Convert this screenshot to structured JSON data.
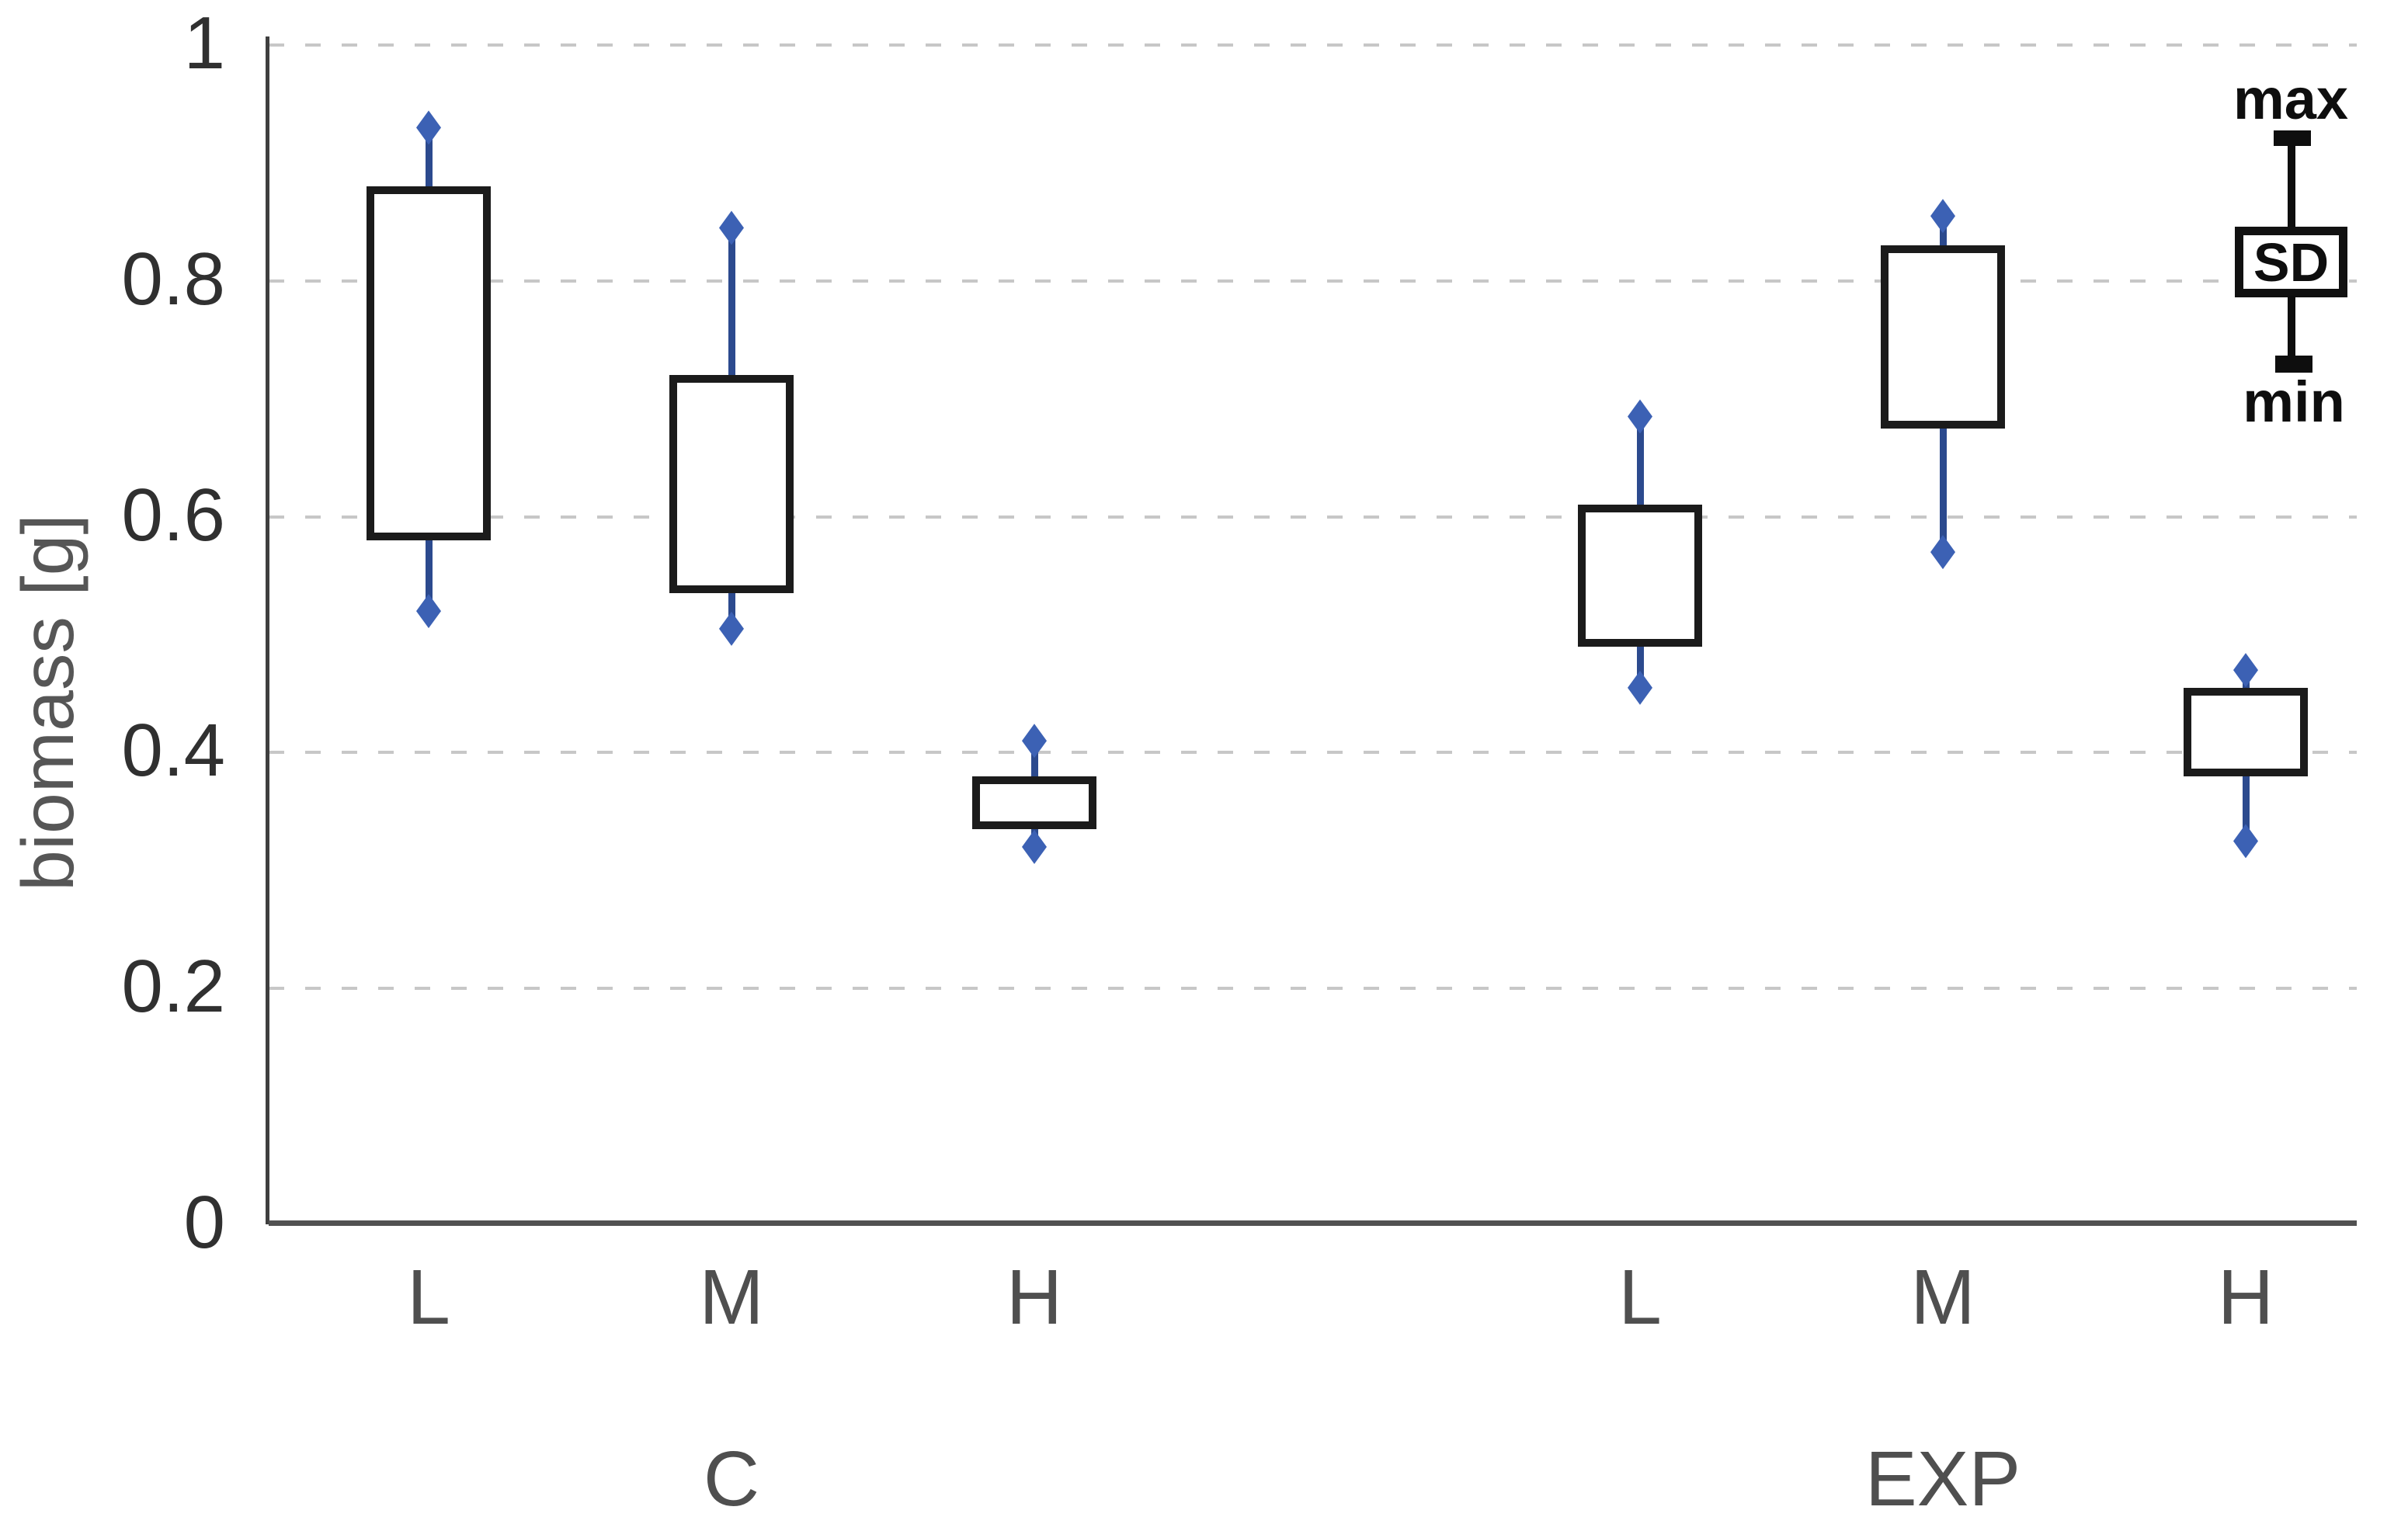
{
  "chart_data": {
    "type": "box",
    "title": "",
    "ylabel": "biomass [g]",
    "xlabel": "",
    "ylim": [
      0,
      1
    ],
    "grid": "dashed horizontal",
    "legend": {
      "position": "top-right",
      "max_label": "max",
      "sd_label": "SD",
      "min_label": "min"
    },
    "yticks": [
      {
        "value": 0,
        "label": "0"
      },
      {
        "value": 0.2,
        "label": "0.2"
      },
      {
        "value": 0.4,
        "label": "0.4"
      },
      {
        "value": 0.6,
        "label": "0.6"
      },
      {
        "value": 0.8,
        "label": "0.8"
      },
      {
        "value": 1,
        "label": "1"
      }
    ],
    "groups": [
      {
        "label": "C",
        "items": [
          {
            "category": "L",
            "sd_low": 0.58,
            "sd_high": 0.88,
            "min": 0.52,
            "max": 0.93
          },
          {
            "category": "M",
            "sd_low": 0.535,
            "sd_high": 0.72,
            "min": 0.505,
            "max": 0.845
          },
          {
            "category": "H",
            "sd_low": 0.335,
            "sd_high": 0.38,
            "min": 0.32,
            "max": 0.41
          }
        ]
      },
      {
        "label": "EXP",
        "items": [
          {
            "category": "L",
            "sd_low": 0.49,
            "sd_high": 0.61,
            "min": 0.455,
            "max": 0.685
          },
          {
            "category": "M",
            "sd_low": 0.675,
            "sd_high": 0.83,
            "min": 0.57,
            "max": 0.855
          },
          {
            "category": "H",
            "sd_low": 0.38,
            "sd_high": 0.455,
            "min": 0.325,
            "max": 0.47
          }
        ]
      }
    ]
  },
  "colors": {
    "box_border": "#1b1b1b",
    "box_fill": "#ffffff",
    "whisker": "#2c4a8e",
    "marker": "#3c61b4",
    "grid": "#c7c7c7",
    "y_axis": "#3f3f3f",
    "x_axis": "#515151",
    "tick_text": "#303030",
    "category_text": "#4f4f4f",
    "axis_title_text": "#565656",
    "legend_text": "#0e0e0e"
  }
}
